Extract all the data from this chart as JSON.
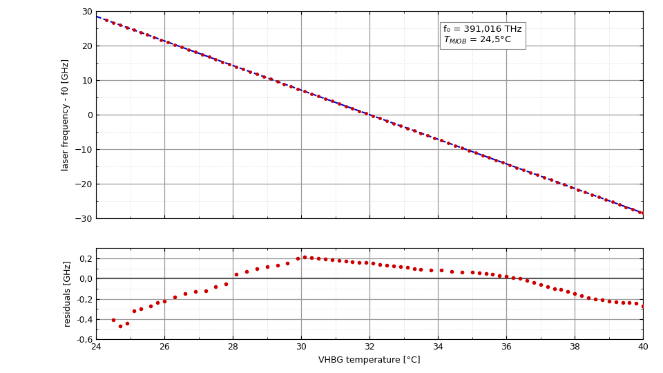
{
  "annotation_line1": "f0 = 391,016 THz",
  "annotation_line2": "TMIOB = 24,5°C",
  "xlabel": "VHBG temperature [°C]",
  "ylabel_upper": "laser frequency - f0 [GHz]",
  "ylabel_lower": "residuals [GHz]",
  "upper_ylim": [
    -30,
    30
  ],
  "lower_ylim": [
    -0.6,
    0.3
  ],
  "xlim": [
    24,
    40
  ],
  "upper_yticks": [
    -30,
    -20,
    -10,
    0,
    10,
    20,
    30
  ],
  "lower_yticks": [
    -0.6,
    -0.4,
    -0.2,
    0.0,
    0.2
  ],
  "xticks": [
    24,
    26,
    28,
    30,
    32,
    34,
    36,
    38,
    40
  ],
  "background_color": "#ffffff",
  "grid_major_color": "#999999",
  "grid_minor_color": "#cccccc",
  "dot_color": "#cc0000",
  "line_color": "#0000cc",
  "slope": -3.5625,
  "intercept": 114.0,
  "upper_main_x": [
    24.3,
    24.5,
    24.7,
    24.9,
    25.1,
    25.3,
    25.5,
    25.7,
    25.9,
    26.1,
    26.3,
    26.5,
    26.7,
    26.9,
    27.1,
    27.3,
    27.5,
    27.7,
    27.9,
    28.1,
    28.3,
    28.5,
    28.7,
    28.9,
    29.1,
    29.3,
    29.5,
    29.7,
    29.9,
    30.1,
    30.3,
    30.5,
    30.7,
    30.9,
    31.1,
    31.3,
    31.5,
    31.7,
    31.9,
    32.1,
    32.3,
    32.5,
    32.7,
    32.9,
    33.1,
    33.3,
    33.5,
    33.7,
    33.9,
    34.1,
    34.3,
    34.5,
    34.7,
    34.9,
    35.1,
    35.3,
    35.5,
    35.7,
    35.9,
    36.1,
    36.3,
    36.5,
    36.7,
    36.9,
    37.1,
    37.3,
    37.5,
    37.7,
    37.9,
    38.1,
    38.3,
    38.5,
    38.7,
    38.9,
    39.1,
    39.3,
    39.5,
    39.7,
    39.9,
    40.0
  ],
  "residuals_x": [
    24.5,
    24.7,
    24.9,
    25.1,
    25.3,
    25.6,
    25.8,
    26.0,
    26.3,
    26.6,
    26.9,
    27.2,
    27.5,
    27.8,
    28.1,
    28.4,
    28.7,
    29.0,
    29.3,
    29.6,
    29.9,
    30.1,
    30.3,
    30.5,
    30.7,
    30.9,
    31.1,
    31.3,
    31.5,
    31.7,
    31.9,
    32.1,
    32.3,
    32.5,
    32.7,
    32.9,
    33.1,
    33.3,
    33.5,
    33.8,
    34.1,
    34.4,
    34.7,
    35.0,
    35.2,
    35.4,
    35.6,
    35.8,
    36.0,
    36.2,
    36.4,
    36.6,
    36.8,
    37.0,
    37.2,
    37.4,
    37.6,
    37.8,
    38.0,
    38.2,
    38.4,
    38.6,
    38.8,
    39.0,
    39.2,
    39.4,
    39.6,
    39.8,
    40.0
  ],
  "residuals_y": [
    -0.41,
    -0.47,
    -0.44,
    -0.32,
    -0.3,
    -0.27,
    -0.24,
    -0.22,
    -0.18,
    -0.15,
    -0.13,
    -0.12,
    -0.08,
    -0.05,
    0.04,
    0.07,
    0.1,
    0.12,
    0.13,
    0.15,
    0.2,
    0.21,
    0.205,
    0.2,
    0.195,
    0.185,
    0.175,
    0.17,
    0.165,
    0.16,
    0.155,
    0.15,
    0.14,
    0.13,
    0.125,
    0.12,
    0.11,
    0.1,
    0.09,
    0.085,
    0.08,
    0.07,
    0.065,
    0.06,
    0.055,
    0.05,
    0.04,
    0.03,
    0.02,
    0.01,
    0.0,
    -0.02,
    -0.04,
    -0.06,
    -0.08,
    -0.1,
    -0.11,
    -0.13,
    -0.15,
    -0.17,
    -0.19,
    -0.2,
    -0.21,
    -0.22,
    -0.23,
    -0.235,
    -0.24,
    -0.245,
    -0.27
  ]
}
